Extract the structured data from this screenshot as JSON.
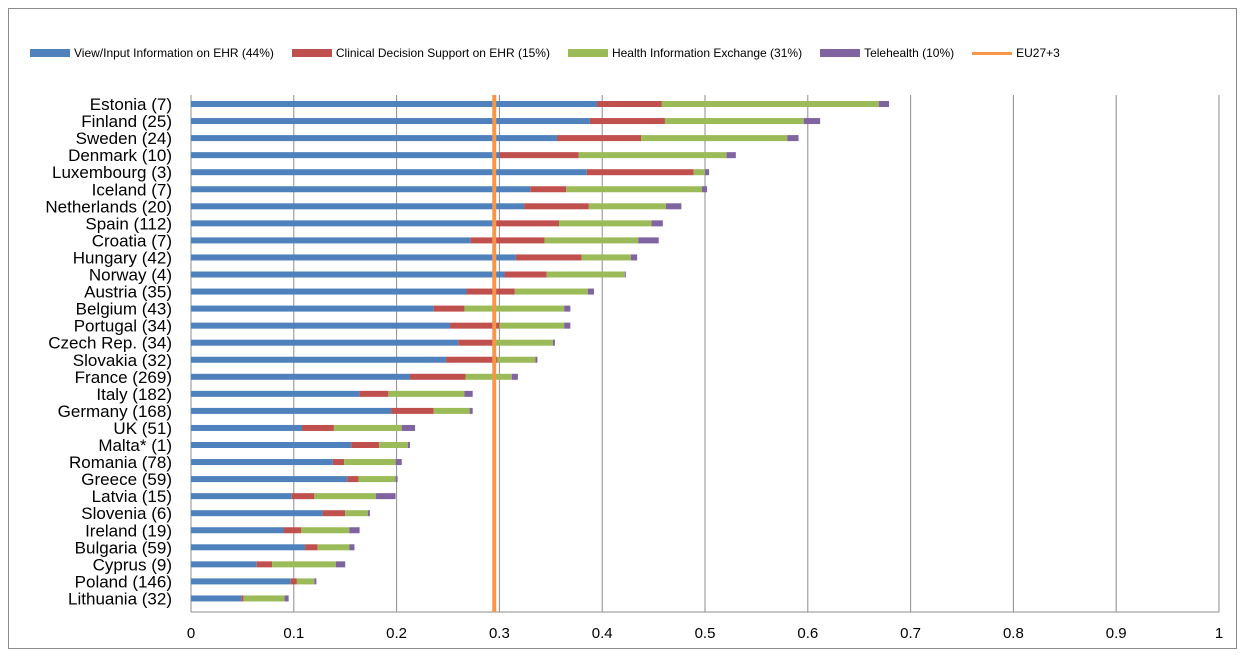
{
  "chart_data": {
    "type": "bar",
    "orientation": "horizontal",
    "stacked": true,
    "categories": [
      "Estonia (7)",
      "Finland (25)",
      "Sweden (24)",
      "Denmark (10)",
      "Luxembourg (3)",
      "Iceland (7)",
      "Netherlands (20)",
      "Spain (112)",
      "Croatia (7)",
      "Hungary (42)",
      "Norway (4)",
      "Austria (35)",
      "Belgium (43)",
      "Portugal (34)",
      "Czech Rep. (34)",
      "Slovakia (32)",
      "France (269)",
      "Italy (182)",
      "Germany (168)",
      "UK (51)",
      "Malta* (1)",
      "Romania (78)",
      "Greece (59)",
      "Latvia (15)",
      "Slovenia (6)",
      "Ireland (19)",
      "Bulgaria (59)",
      "Cyprus (9)",
      "Poland (146)",
      "Lithuania (32)"
    ],
    "series": [
      {
        "name": "View/Input Information on EHR (44%)",
        "color": "#4f81bd",
        "values": [
          0.395,
          0.388,
          0.356,
          0.3,
          0.385,
          0.33,
          0.324,
          0.296,
          0.272,
          0.316,
          0.305,
          0.268,
          0.236,
          0.252,
          0.26,
          0.248,
          0.213,
          0.164,
          0.195,
          0.108,
          0.156,
          0.138,
          0.152,
          0.098,
          0.128,
          0.09,
          0.111,
          0.064,
          0.097,
          0.049
        ]
      },
      {
        "name": "Clinical Decision Support on EHR (15%)",
        "color": "#c0504d",
        "values": [
          0.063,
          0.073,
          0.082,
          0.077,
          0.104,
          0.035,
          0.063,
          0.062,
          0.072,
          0.064,
          0.041,
          0.047,
          0.03,
          0.048,
          0.035,
          0.05,
          0.054,
          0.028,
          0.041,
          0.031,
          0.027,
          0.011,
          0.011,
          0.022,
          0.022,
          0.017,
          0.012,
          0.015,
          0.006,
          0.002
        ]
      },
      {
        "name": "Health Information Exchange (31%)",
        "color": "#9bbb59",
        "values": [
          0.211,
          0.135,
          0.142,
          0.144,
          0.011,
          0.132,
          0.075,
          0.09,
          0.091,
          0.048,
          0.076,
          0.071,
          0.097,
          0.063,
          0.057,
          0.037,
          0.045,
          0.074,
          0.035,
          0.066,
          0.028,
          0.05,
          0.036,
          0.06,
          0.022,
          0.047,
          0.031,
          0.062,
          0.017,
          0.04
        ]
      },
      {
        "name": "Telehealth (10%)",
        "color": "#8064a2",
        "values": [
          0.01,
          0.016,
          0.011,
          0.009,
          0.004,
          0.005,
          0.015,
          0.011,
          0.02,
          0.006,
          0.001,
          0.006,
          0.006,
          0.006,
          0.002,
          0.002,
          0.006,
          0.008,
          0.003,
          0.013,
          0.002,
          0.006,
          0.002,
          0.019,
          0.002,
          0.01,
          0.005,
          0.009,
          0.002,
          0.004
        ]
      }
    ],
    "reference_line": {
      "name": "EU27+3",
      "value": 0.295,
      "color": "#f79646"
    },
    "xlim": [
      0,
      1
    ],
    "xticks": [
      "0",
      "0.1",
      "0.2",
      "0.3",
      "0.4",
      "0.5",
      "0.6",
      "0.7",
      "0.8",
      "0.9",
      "1"
    ],
    "xtick_values": [
      0,
      0.1,
      0.2,
      0.3,
      0.4,
      0.5,
      0.6,
      0.7,
      0.8,
      0.9,
      1
    ],
    "grid": "vertical",
    "legend": "top",
    "title": "",
    "xlabel": "",
    "ylabel": ""
  }
}
